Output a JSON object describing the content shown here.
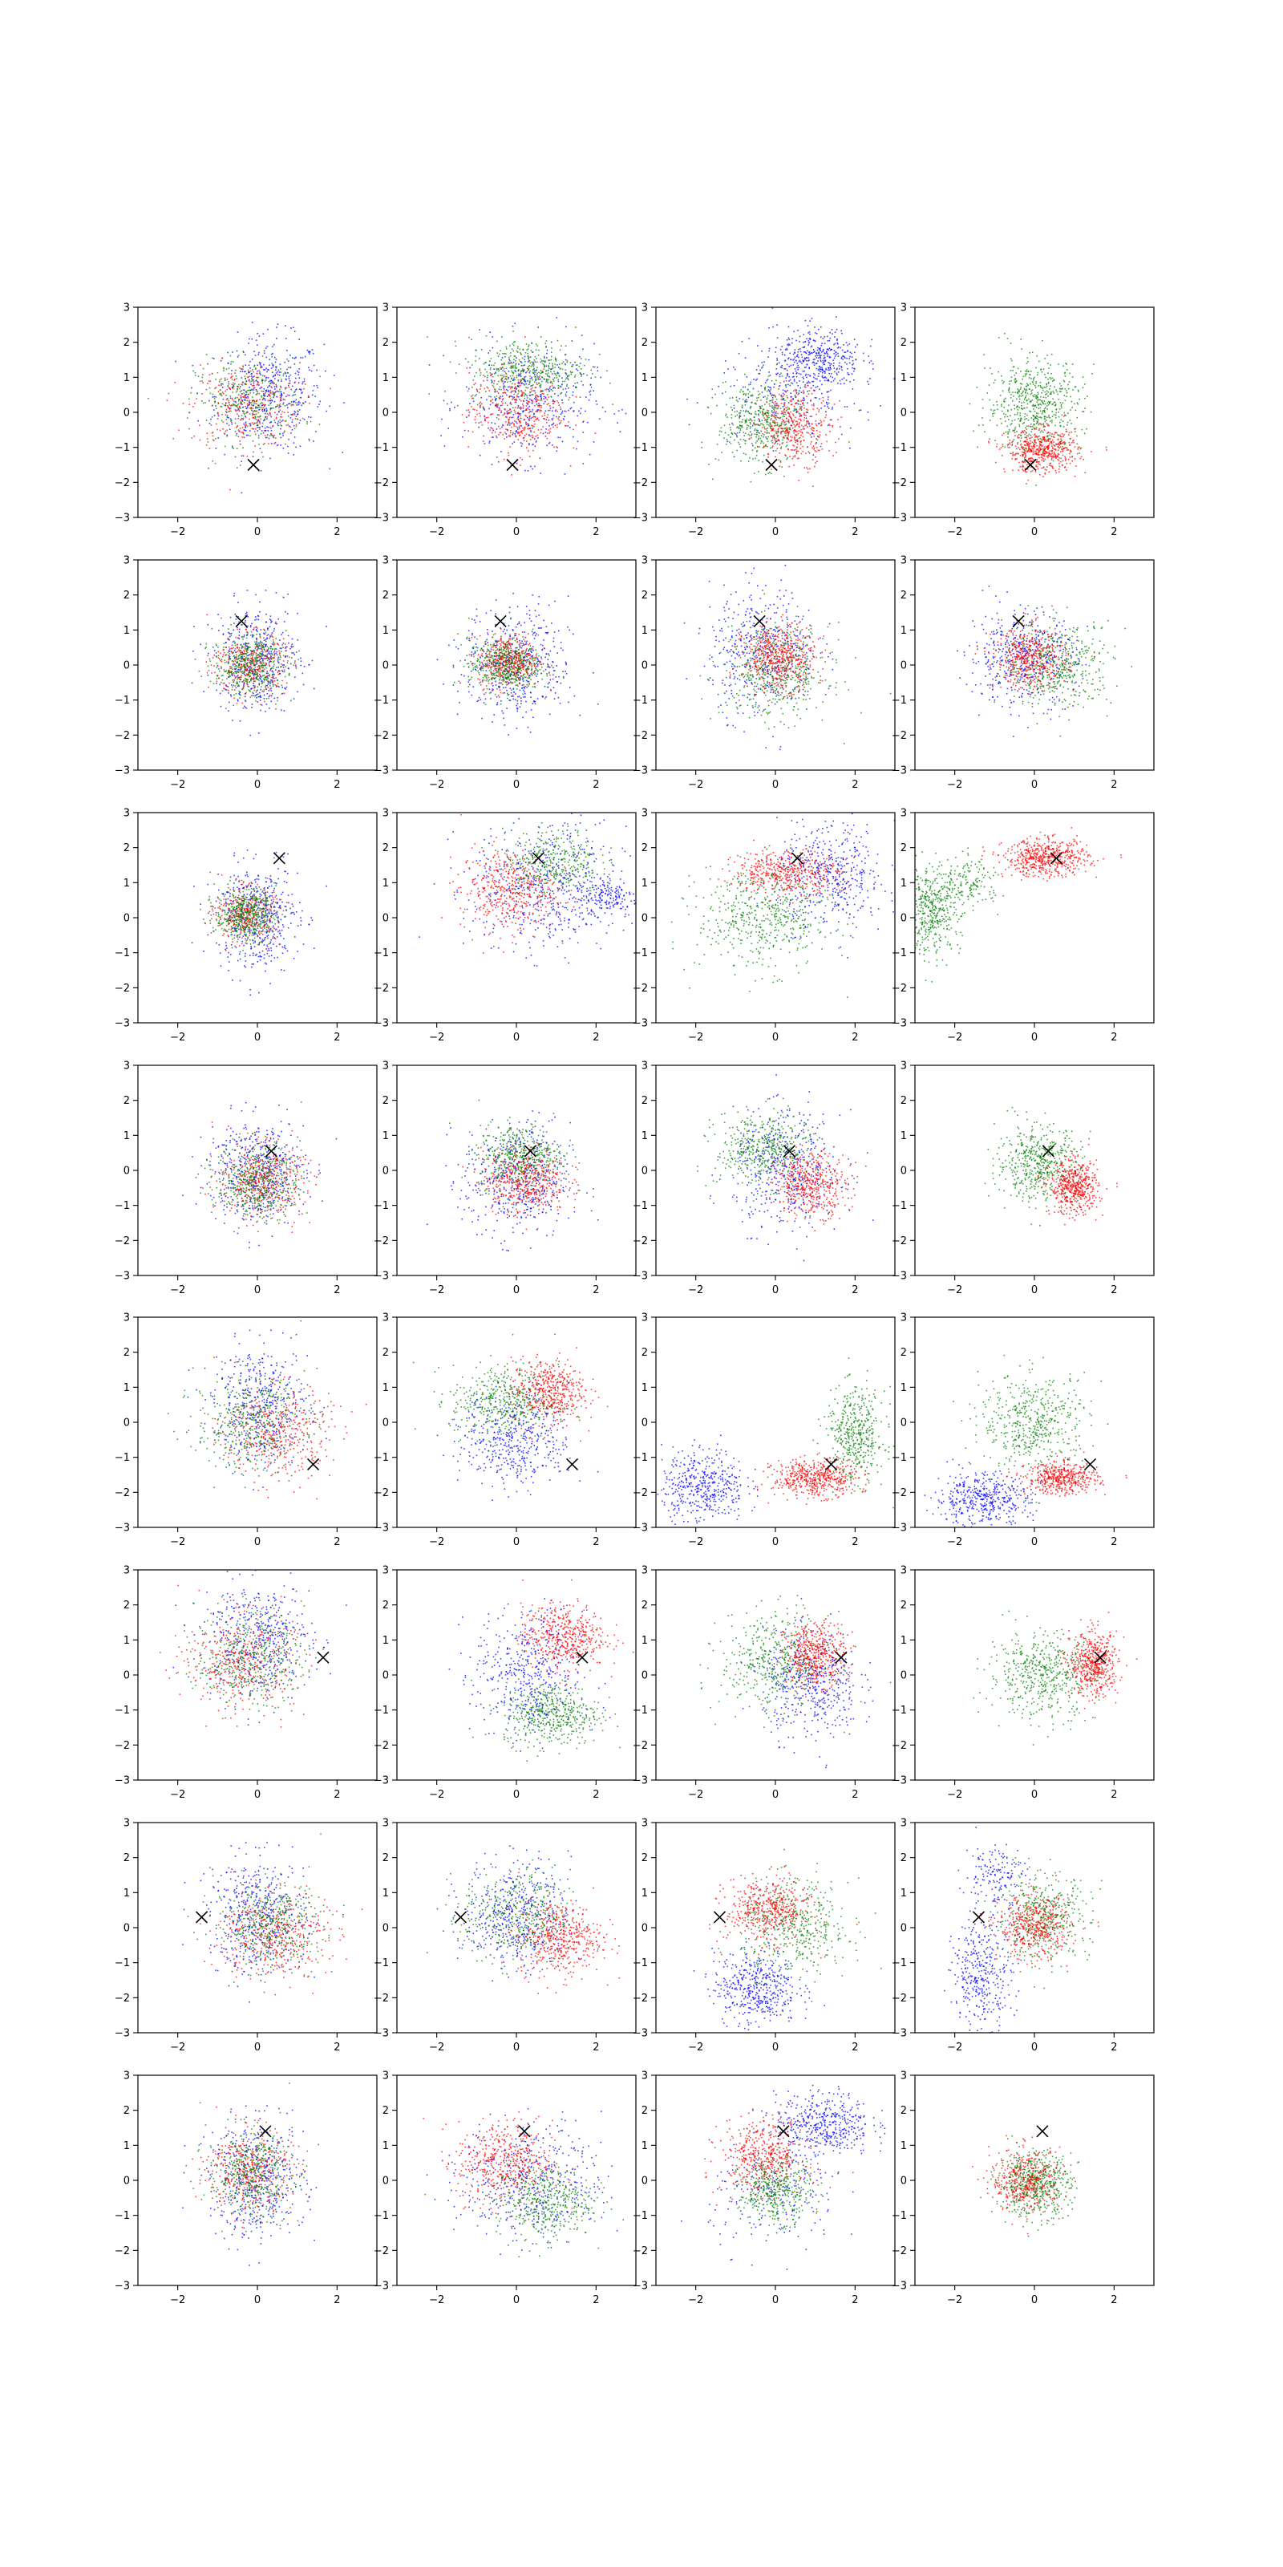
{
  "figure": {
    "rows": 8,
    "cols": 4,
    "series_colors": [
      "#0000ff",
      "#ff0000",
      "#008000"
    ],
    "marker_color": "#000000",
    "marker_symbol": "×"
  },
  "chart_data": {
    "type": "scatter",
    "grid": false,
    "legend": "none",
    "xlim": [
      -3,
      3
    ],
    "ylim": [
      -3,
      3
    ],
    "x_ticks": [
      -2,
      0,
      2
    ],
    "y_ticks": [
      -3,
      -2,
      -1,
      0,
      1,
      2,
      3
    ],
    "x_tick_labels": [
      "−2",
      "0",
      "2"
    ],
    "y_tick_labels": [
      "−3",
      "−2",
      "−1",
      "0",
      "1",
      "2",
      "3"
    ],
    "markers": [
      {
        "x": -0.1,
        "y": -1.5
      },
      {
        "x": -0.4,
        "y": 1.25
      },
      {
        "x": 0.55,
        "y": 1.7
      },
      {
        "x": 0.35,
        "y": 0.55
      },
      {
        "x": 1.4,
        "y": -1.2
      },
      {
        "x": 1.65,
        "y": 0.5
      },
      {
        "x": -1.4,
        "y": 0.3
      },
      {
        "x": 0.2,
        "y": 1.4
      }
    ],
    "panels": [
      [
        {
          "blobs": [
            {
              "c": 0,
              "x": 0.3,
              "y": 0.5,
              "sx": 0.9,
              "sy": 1.1,
              "n": 500
            },
            {
              "c": 1,
              "x": -0.3,
              "y": 0.2,
              "sx": 0.9,
              "sy": 0.8,
              "n": 320
            },
            {
              "c": 2,
              "x": -0.2,
              "y": 0.3,
              "sx": 0.9,
              "sy": 0.8,
              "n": 320
            }
          ]
        },
        {
          "blobs": [
            {
              "c": 0,
              "x": 0.3,
              "y": 0.3,
              "sx": 1.1,
              "sy": 1.1,
              "n": 450
            },
            {
              "c": 2,
              "x": 0.3,
              "y": 1.2,
              "sx": 1.0,
              "sy": 0.6,
              "n": 450
            },
            {
              "c": 1,
              "x": 0.0,
              "y": 0.0,
              "sx": 0.8,
              "sy": 0.8,
              "n": 400
            }
          ]
        },
        {
          "blobs": [
            {
              "c": 0,
              "x": 1.1,
              "y": 1.5,
              "sx": 0.7,
              "sy": 0.6,
              "n": 400
            },
            {
              "c": 0,
              "x": 0.3,
              "y": 0.5,
              "sx": 1.2,
              "sy": 1.0,
              "n": 250
            },
            {
              "c": 2,
              "x": -0.4,
              "y": -0.3,
              "sx": 0.7,
              "sy": 0.8,
              "n": 450
            },
            {
              "c": 1,
              "x": 0.5,
              "y": -0.4,
              "sx": 0.6,
              "sy": 0.7,
              "n": 400
            }
          ]
        },
        {
          "blobs": [
            {
              "c": 2,
              "x": 0.0,
              "y": 0.2,
              "sx": 0.8,
              "sy": 0.9,
              "n": 600
            },
            {
              "c": 1,
              "x": 0.2,
              "y": -1.1,
              "sx": 0.6,
              "sy": 0.4,
              "n": 500
            }
          ]
        }
      ],
      [
        {
          "blobs": [
            {
              "c": 0,
              "x": 0.0,
              "y": 0.2,
              "sx": 0.7,
              "sy": 1.0,
              "n": 450
            },
            {
              "c": 1,
              "x": -0.2,
              "y": 0.0,
              "sx": 0.6,
              "sy": 0.6,
              "n": 350
            },
            {
              "c": 2,
              "x": -0.2,
              "y": 0.0,
              "sx": 0.6,
              "sy": 0.6,
              "n": 450
            }
          ]
        },
        {
          "blobs": [
            {
              "c": 0,
              "x": 0.0,
              "y": 0.0,
              "sx": 0.9,
              "sy": 1.1,
              "n": 450
            },
            {
              "c": 1,
              "x": -0.2,
              "y": 0.1,
              "sx": 0.5,
              "sy": 0.5,
              "n": 450
            },
            {
              "c": 2,
              "x": -0.3,
              "y": 0.0,
              "sx": 0.6,
              "sy": 0.5,
              "n": 450
            }
          ]
        },
        {
          "blobs": [
            {
              "c": 0,
              "x": -0.3,
              "y": 0.4,
              "sx": 0.9,
              "sy": 1.2,
              "n": 450
            },
            {
              "c": 2,
              "x": 0.0,
              "y": -0.2,
              "sx": 0.9,
              "sy": 0.9,
              "n": 450
            },
            {
              "c": 1,
              "x": 0.1,
              "y": 0.2,
              "sx": 0.6,
              "sy": 0.6,
              "n": 500
            }
          ]
        },
        {
          "blobs": [
            {
              "c": 0,
              "x": -0.3,
              "y": 0.2,
              "sx": 0.9,
              "sy": 0.9,
              "n": 450
            },
            {
              "c": 2,
              "x": 0.6,
              "y": 0.0,
              "sx": 0.9,
              "sy": 0.8,
              "n": 450
            },
            {
              "c": 1,
              "x": -0.1,
              "y": 0.2,
              "sx": 0.6,
              "sy": 0.6,
              "n": 450
            }
          ]
        }
      ],
      [
        {
          "blobs": [
            {
              "c": 0,
              "x": 0.0,
              "y": 0.0,
              "sx": 0.7,
              "sy": 1.0,
              "n": 450
            },
            {
              "c": 1,
              "x": -0.3,
              "y": 0.1,
              "sx": 0.5,
              "sy": 0.5,
              "n": 350
            },
            {
              "c": 2,
              "x": -0.3,
              "y": 0.1,
              "sx": 0.5,
              "sy": 0.5,
              "n": 450
            }
          ]
        },
        {
          "blobs": [
            {
              "c": 0,
              "x": 0.8,
              "y": 0.8,
              "sx": 1.3,
              "sy": 1.2,
              "n": 500
            },
            {
              "c": 0,
              "x": 2.3,
              "y": 0.6,
              "sx": 0.5,
              "sy": 0.4,
              "n": 150
            },
            {
              "c": 1,
              "x": -0.2,
              "y": 0.8,
              "sx": 0.8,
              "sy": 0.8,
              "n": 450
            },
            {
              "c": 2,
              "x": 0.9,
              "y": 1.6,
              "sx": 0.8,
              "sy": 0.6,
              "n": 350
            }
          ]
        },
        {
          "blobs": [
            {
              "c": 0,
              "x": 1.4,
              "y": 1.2,
              "sx": 0.9,
              "sy": 1.0,
              "n": 450
            },
            {
              "c": 2,
              "x": -0.3,
              "y": 0.0,
              "sx": 1.1,
              "sy": 1.0,
              "n": 500
            },
            {
              "c": 1,
              "x": 0.3,
              "y": 1.3,
              "sx": 0.9,
              "sy": 0.4,
              "n": 450
            }
          ]
        },
        {
          "blobs": [
            {
              "c": 2,
              "x": -2.6,
              "y": 0.2,
              "sx": 0.5,
              "sy": 0.8,
              "n": 450
            },
            {
              "c": 2,
              "x": -1.6,
              "y": 1.0,
              "sx": 0.5,
              "sy": 0.5,
              "n": 150
            },
            {
              "c": 1,
              "x": 0.3,
              "y": 1.7,
              "sx": 0.7,
              "sy": 0.35,
              "n": 550
            }
          ]
        }
      ],
      [
        {
          "blobs": [
            {
              "c": 0,
              "x": 0.0,
              "y": 0.0,
              "sx": 0.8,
              "sy": 1.0,
              "n": 450
            },
            {
              "c": 1,
              "x": 0.1,
              "y": -0.3,
              "sx": 0.7,
              "sy": 0.7,
              "n": 450
            },
            {
              "c": 2,
              "x": 0.0,
              "y": -0.3,
              "sx": 0.7,
              "sy": 0.7,
              "n": 450
            }
          ]
        },
        {
          "blobs": [
            {
              "c": 0,
              "x": 0.0,
              "y": -0.3,
              "sx": 0.9,
              "sy": 1.1,
              "n": 450
            },
            {
              "c": 2,
              "x": 0.1,
              "y": 0.4,
              "sx": 0.7,
              "sy": 0.6,
              "n": 450
            },
            {
              "c": 1,
              "x": 0.2,
              "y": -0.3,
              "sx": 0.7,
              "sy": 0.6,
              "n": 450
            }
          ]
        },
        {
          "blobs": [
            {
              "c": 0,
              "x": 0.3,
              "y": 0.0,
              "sx": 0.9,
              "sy": 1.1,
              "n": 450
            },
            {
              "c": 2,
              "x": -0.3,
              "y": 0.6,
              "sx": 0.8,
              "sy": 0.7,
              "n": 450
            },
            {
              "c": 1,
              "x": 0.9,
              "y": -0.4,
              "sx": 0.6,
              "sy": 0.6,
              "n": 450
            }
          ]
        },
        {
          "blobs": [
            {
              "c": 2,
              "x": 0.1,
              "y": 0.2,
              "sx": 0.7,
              "sy": 0.7,
              "n": 500
            },
            {
              "c": 1,
              "x": 1.0,
              "y": -0.5,
              "sx": 0.4,
              "sy": 0.5,
              "n": 500
            }
          ]
        }
      ],
      [
        {
          "blobs": [
            {
              "c": 0,
              "x": 0.1,
              "y": 0.5,
              "sx": 0.8,
              "sy": 1.1,
              "n": 450
            },
            {
              "c": 1,
              "x": 0.5,
              "y": -0.3,
              "sx": 0.9,
              "sy": 0.9,
              "n": 400
            },
            {
              "c": 2,
              "x": -0.2,
              "y": 0.0,
              "sx": 0.9,
              "sy": 0.9,
              "n": 400
            }
          ]
        },
        {
          "blobs": [
            {
              "c": 0,
              "x": 0.0,
              "y": -0.5,
              "sx": 0.9,
              "sy": 0.9,
              "n": 450
            },
            {
              "c": 2,
              "x": -0.3,
              "y": 0.6,
              "sx": 0.9,
              "sy": 0.7,
              "n": 450
            },
            {
              "c": 1,
              "x": 0.8,
              "y": 0.9,
              "sx": 0.6,
              "sy": 0.6,
              "n": 450
            }
          ]
        },
        {
          "blobs": [
            {
              "c": 0,
              "x": -1.8,
              "y": -1.8,
              "sx": 0.7,
              "sy": 0.7,
              "n": 450
            },
            {
              "c": 2,
              "x": 2.0,
              "y": -0.4,
              "sx": 0.5,
              "sy": 0.9,
              "n": 450
            },
            {
              "c": 1,
              "x": 1.0,
              "y": -1.6,
              "sx": 0.7,
              "sy": 0.35,
              "n": 500
            }
          ]
        },
        {
          "blobs": [
            {
              "c": 0,
              "x": -1.3,
              "y": -2.2,
              "sx": 0.8,
              "sy": 0.5,
              "n": 450
            },
            {
              "c": 2,
              "x": 0.0,
              "y": 0.0,
              "sx": 0.9,
              "sy": 0.9,
              "n": 500
            },
            {
              "c": 1,
              "x": 0.7,
              "y": -1.6,
              "sx": 0.6,
              "sy": 0.3,
              "n": 450
            }
          ]
        }
      ],
      [
        {
          "blobs": [
            {
              "c": 0,
              "x": 0.0,
              "y": 1.0,
              "sx": 0.9,
              "sy": 1.1,
              "n": 450
            },
            {
              "c": 1,
              "x": -0.4,
              "y": 0.4,
              "sx": 0.9,
              "sy": 0.9,
              "n": 400
            },
            {
              "c": 2,
              "x": -0.2,
              "y": 0.5,
              "sx": 0.9,
              "sy": 0.9,
              "n": 400
            }
          ]
        },
        {
          "blobs": [
            {
              "c": 0,
              "x": 0.3,
              "y": 0.0,
              "sx": 0.9,
              "sy": 1.2,
              "n": 450
            },
            {
              "c": 2,
              "x": 0.9,
              "y": -1.1,
              "sx": 0.8,
              "sy": 0.6,
              "n": 450
            },
            {
              "c": 1,
              "x": 1.2,
              "y": 1.1,
              "sx": 0.7,
              "sy": 0.6,
              "n": 450
            }
          ]
        },
        {
          "blobs": [
            {
              "c": 0,
              "x": 0.9,
              "y": -0.3,
              "sx": 0.8,
              "sy": 1.0,
              "n": 450
            },
            {
              "c": 2,
              "x": 0.0,
              "y": 0.4,
              "sx": 0.9,
              "sy": 0.9,
              "n": 450
            },
            {
              "c": 1,
              "x": 1.0,
              "y": 0.6,
              "sx": 0.5,
              "sy": 0.6,
              "n": 450
            }
          ]
        },
        {
          "blobs": [
            {
              "c": 2,
              "x": 0.2,
              "y": 0.0,
              "sx": 0.9,
              "sy": 0.8,
              "n": 500
            },
            {
              "c": 1,
              "x": 1.5,
              "y": 0.3,
              "sx": 0.4,
              "sy": 0.6,
              "n": 500
            }
          ]
        }
      ],
      [
        {
          "blobs": [
            {
              "c": 0,
              "x": 0.0,
              "y": 0.3,
              "sx": 0.8,
              "sy": 1.1,
              "n": 450
            },
            {
              "c": 1,
              "x": 0.4,
              "y": -0.2,
              "sx": 0.9,
              "sy": 0.8,
              "n": 400
            },
            {
              "c": 2,
              "x": 0.3,
              "y": 0.1,
              "sx": 0.9,
              "sy": 0.8,
              "n": 400
            }
          ]
        },
        {
          "blobs": [
            {
              "c": 0,
              "x": 0.0,
              "y": 0.4,
              "sx": 0.9,
              "sy": 1.0,
              "n": 450
            },
            {
              "c": 2,
              "x": 0.0,
              "y": 0.3,
              "sx": 0.9,
              "sy": 0.9,
              "n": 400
            },
            {
              "c": 1,
              "x": 1.1,
              "y": -0.3,
              "sx": 0.7,
              "sy": 0.7,
              "n": 450
            }
          ]
        },
        {
          "blobs": [
            {
              "c": 0,
              "x": -0.5,
              "y": -1.7,
              "sx": 0.7,
              "sy": 0.7,
              "n": 450
            },
            {
              "c": 2,
              "x": 0.5,
              "y": 0.0,
              "sx": 0.9,
              "sy": 0.9,
              "n": 450
            },
            {
              "c": 1,
              "x": -0.2,
              "y": 0.5,
              "sx": 0.7,
              "sy": 0.6,
              "n": 450
            }
          ]
        },
        {
          "blobs": [
            {
              "c": 0,
              "x": -1.3,
              "y": -1.3,
              "sx": 0.5,
              "sy": 1.0,
              "n": 350
            },
            {
              "c": 0,
              "x": -1.0,
              "y": 1.5,
              "sx": 0.5,
              "sy": 0.6,
              "n": 150
            },
            {
              "c": 2,
              "x": 0.2,
              "y": 0.3,
              "sx": 0.8,
              "sy": 0.8,
              "n": 450
            },
            {
              "c": 1,
              "x": 0.0,
              "y": 0.0,
              "sx": 0.6,
              "sy": 0.6,
              "n": 450
            }
          ]
        }
      ],
      [
        {
          "blobs": [
            {
              "c": 0,
              "x": 0.0,
              "y": 0.0,
              "sx": 0.8,
              "sy": 1.1,
              "n": 450
            },
            {
              "c": 1,
              "x": -0.2,
              "y": 0.3,
              "sx": 0.7,
              "sy": 0.8,
              "n": 400
            },
            {
              "c": 2,
              "x": -0.2,
              "y": 0.2,
              "sx": 0.7,
              "sy": 0.8,
              "n": 400
            }
          ]
        },
        {
          "blobs": [
            {
              "c": 0,
              "x": 0.4,
              "y": 0.0,
              "sx": 1.2,
              "sy": 1.1,
              "n": 450
            },
            {
              "c": 1,
              "x": -0.3,
              "y": 0.5,
              "sx": 0.8,
              "sy": 0.8,
              "n": 450
            },
            {
              "c": 2,
              "x": 0.7,
              "y": -0.6,
              "sx": 0.8,
              "sy": 0.7,
              "n": 400
            }
          ]
        },
        {
          "blobs": [
            {
              "c": 0,
              "x": 1.2,
              "y": 1.6,
              "sx": 0.8,
              "sy": 0.6,
              "n": 450
            },
            {
              "c": 0,
              "x": 0.0,
              "y": -0.5,
              "sx": 1.1,
              "sy": 1.0,
              "n": 200
            },
            {
              "c": 1,
              "x": -0.3,
              "y": 0.7,
              "sx": 0.7,
              "sy": 0.7,
              "n": 450
            },
            {
              "c": 2,
              "x": 0.0,
              "y": -0.3,
              "sx": 0.6,
              "sy": 0.6,
              "n": 400
            }
          ]
        },
        {
          "blobs": [
            {
              "c": 2,
              "x": 0.0,
              "y": -0.1,
              "sx": 0.6,
              "sy": 0.6,
              "n": 550
            },
            {
              "c": 1,
              "x": -0.2,
              "y": 0.0,
              "sx": 0.6,
              "sy": 0.6,
              "n": 400
            }
          ]
        }
      ]
    ]
  }
}
